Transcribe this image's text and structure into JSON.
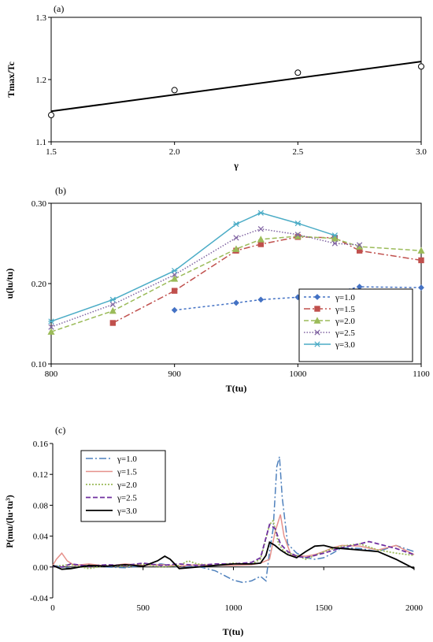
{
  "chart_data": [
    {
      "type": "scatter",
      "panel_label": "(a)",
      "xlabel": "γ",
      "ylabel": "Tmax/Tc",
      "xlim": [
        1.5,
        3.0
      ],
      "ylim": [
        1.1,
        1.3
      ],
      "xticks": [
        "1.5",
        "2.0",
        "2.5",
        "3.0"
      ],
      "yticks": [
        "1.1",
        "1.2",
        "1.3"
      ],
      "grid": false,
      "points": {
        "x": [
          1.5,
          2.0,
          2.5,
          3.0
        ],
        "y": [
          1.143,
          1.183,
          1.211,
          1.221
        ]
      },
      "fit_line": {
        "x": [
          1.5,
          3.0
        ],
        "y": [
          1.149,
          1.229
        ]
      }
    },
    {
      "type": "line",
      "panel_label": "(b)",
      "xlabel": "T(tu)",
      "ylabel": "u(lu/tu)",
      "xlim": [
        800,
        1100
      ],
      "ylim": [
        0.1,
        0.3
      ],
      "xticks": [
        "800",
        "900",
        "1000",
        "1100"
      ],
      "yticks": [
        "0.10",
        "0.20",
        "0.30"
      ],
      "grid": false,
      "legend_position": "bottom-right",
      "series": [
        {
          "name": "γ=1.0",
          "color": "#4472C4",
          "marker": "diamond",
          "dash": "3,3",
          "x": [
            900,
            950,
            970,
            1000,
            1030,
            1050,
            1100
          ],
          "y": [
            0.167,
            0.176,
            0.18,
            0.183,
            0.189,
            0.196,
            0.195
          ]
        },
        {
          "name": "γ=1.5",
          "color": "#C0504D",
          "marker": "square",
          "dash": "8,3,2,3",
          "x": [
            850,
            900,
            950,
            970,
            1000,
            1030,
            1050,
            1100
          ],
          "y": [
            0.151,
            0.191,
            0.241,
            0.249,
            0.258,
            0.257,
            0.241,
            0.229
          ]
        },
        {
          "name": "γ=2.0",
          "color": "#9BBB59",
          "marker": "triangle",
          "dash": "6,3",
          "x": [
            800,
            850,
            900,
            950,
            970,
            1000,
            1030,
            1050,
            1100
          ],
          "y": [
            0.14,
            0.166,
            0.206,
            0.243,
            0.255,
            0.259,
            0.256,
            0.246,
            0.241
          ]
        },
        {
          "name": "γ=2.5",
          "color": "#8064A2",
          "marker": "x",
          "dash": "1.5,2",
          "x": [
            800,
            850,
            900,
            950,
            970,
            1000,
            1030,
            1050
          ],
          "y": [
            0.146,
            0.174,
            0.211,
            0.257,
            0.268,
            0.261,
            0.25,
            0.248
          ]
        },
        {
          "name": "γ=3.0",
          "color": "#4BACC6",
          "marker": "asterisk",
          "dash": "",
          "x": [
            800,
            850,
            900,
            950,
            970,
            1000,
            1030
          ],
          "y": [
            0.153,
            0.18,
            0.216,
            0.274,
            0.288,
            0.275,
            0.26
          ]
        }
      ]
    },
    {
      "type": "line",
      "panel_label": "(c)",
      "xlabel": "T(tu)",
      "ylabel": "P(mu/(lu·tu³)",
      "xlim": [
        0,
        2000
      ],
      "ylim": [
        -0.04,
        0.16
      ],
      "xticks": [
        "0",
        "500",
        "1000",
        "1500",
        "2000"
      ],
      "yticks": [
        "-0.04",
        "0.00",
        "0.04",
        "0.08",
        "0.12",
        "0.16"
      ],
      "grid": false,
      "legend_position": "top-left",
      "series": [
        {
          "name": "γ=1.0",
          "color": "#4F81BD",
          "dash": "9,3,2,3",
          "width": 1.5,
          "x": [
            0,
            50,
            100,
            200,
            300,
            400,
            500,
            600,
            700,
            800,
            900,
            1000,
            1050,
            1100,
            1150,
            1180,
            1200,
            1220,
            1240,
            1255,
            1270,
            1300,
            1350,
            1400,
            1450,
            1500,
            1550,
            1600,
            1700,
            1800,
            1900,
            2000
          ],
          "y": [
            0.002,
            0.0,
            -0.002,
            0.003,
            0.0,
            -0.001,
            0.002,
            0.004,
            0.0,
            0.001,
            -0.005,
            -0.017,
            -0.02,
            -0.018,
            -0.012,
            -0.018,
            0.02,
            0.05,
            0.13,
            0.143,
            0.09,
            0.03,
            0.018,
            0.012,
            0.01,
            0.012,
            0.018,
            0.025,
            0.024,
            0.02,
            0.028,
            0.02
          ]
        },
        {
          "name": "γ=1.5",
          "color": "#E6918B",
          "dash": "",
          "width": 1.5,
          "x": [
            0,
            20,
            50,
            80,
            120,
            200,
            300,
            400,
            500,
            600,
            700,
            800,
            900,
            1000,
            1100,
            1150,
            1200,
            1230,
            1260,
            1280,
            1320,
            1400,
            1450,
            1500,
            1550,
            1600,
            1700,
            1800,
            1900,
            2000
          ],
          "y": [
            0.002,
            0.01,
            0.018,
            0.008,
            0.002,
            0.004,
            0.001,
            0.004,
            0.002,
            0.003,
            0.001,
            0.003,
            0.002,
            0.002,
            0.003,
            0.005,
            0.01,
            0.045,
            0.068,
            0.04,
            0.015,
            0.014,
            0.016,
            0.02,
            0.025,
            0.028,
            0.027,
            0.022,
            0.028,
            0.016
          ]
        },
        {
          "name": "γ=2.0",
          "color": "#9BBB59",
          "dash": "2,2",
          "width": 1.8,
          "x": [
            0,
            100,
            200,
            300,
            400,
            500,
            600,
            700,
            750,
            800,
            900,
            1000,
            1100,
            1150,
            1200,
            1220,
            1250,
            1280,
            1350,
            1400,
            1500,
            1600,
            1700,
            1800,
            1900,
            2000
          ],
          "y": [
            0.001,
            0.003,
            -0.002,
            0.002,
            0.001,
            0.004,
            0.0,
            0.002,
            0.008,
            0.004,
            0.002,
            0.005,
            0.004,
            0.01,
            0.055,
            0.06,
            0.03,
            0.02,
            0.015,
            0.01,
            0.02,
            0.027,
            0.03,
            0.022,
            0.018,
            0.015
          ]
        },
        {
          "name": "γ=2.5",
          "color": "#7030A0",
          "dash": "6,3",
          "width": 1.8,
          "x": [
            0,
            50,
            100,
            200,
            300,
            400,
            500,
            600,
            700,
            800,
            900,
            1000,
            1100,
            1150,
            1200,
            1230,
            1260,
            1300,
            1350,
            1400,
            1500,
            1600,
            1700,
            1750,
            1800,
            1900,
            2000
          ],
          "y": [
            0.001,
            0.0,
            0.004,
            0.001,
            0.003,
            0.002,
            0.005,
            0.002,
            0.004,
            0.002,
            0.004,
            0.004,
            0.006,
            0.012,
            0.055,
            0.05,
            0.03,
            0.02,
            0.014,
            0.012,
            0.018,
            0.025,
            0.03,
            0.033,
            0.03,
            0.024,
            0.016
          ]
        },
        {
          "name": "γ=3.0",
          "color": "#000000",
          "dash": "",
          "width": 1.8,
          "x": [
            0,
            50,
            100,
            200,
            300,
            400,
            500,
            580,
            620,
            650,
            700,
            800,
            900,
            1000,
            1100,
            1150,
            1180,
            1200,
            1230,
            1260,
            1300,
            1350,
            1400,
            1450,
            1500,
            1550,
            1600,
            1700,
            1800,
            1900,
            2000
          ],
          "y": [
            0.002,
            -0.003,
            -0.002,
            0.002,
            0.001,
            0.003,
            0.001,
            0.008,
            0.014,
            0.01,
            -0.002,
            0.0,
            0.002,
            0.004,
            0.004,
            0.005,
            0.015,
            0.032,
            0.028,
            0.022,
            0.016,
            0.012,
            0.02,
            0.027,
            0.028,
            0.025,
            0.024,
            0.022,
            0.02,
            0.01,
            -0.002
          ]
        }
      ]
    }
  ]
}
